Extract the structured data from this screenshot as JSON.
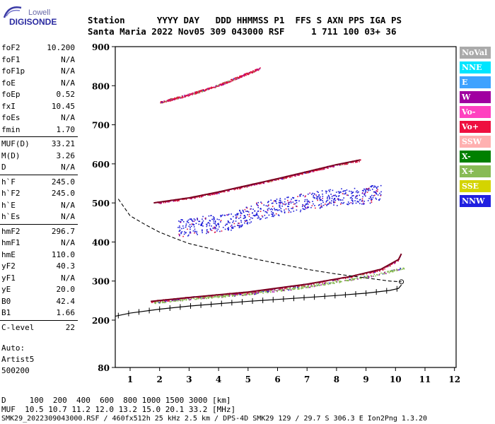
{
  "logo": {
    "top": "Lowell",
    "main": "DIGISONDE"
  },
  "header": {
    "row1": "Station      YYYY DAY   DDD HHMMSS P1  FFS S AXN PPS IGA PS",
    "row2": "Santa Maria 2022 Nov05 309 043000 RSF     1 711 100 03+ 36"
  },
  "params_group1": [
    {
      "label": "foF2",
      "value": "10.200"
    },
    {
      "label": "foF1",
      "value": "N/A"
    },
    {
      "label": "foF1p",
      "value": "N/A"
    },
    {
      "label": "foE",
      "value": "N/A"
    },
    {
      "label": "foEp",
      "value": "0.52"
    },
    {
      "label": "fxI",
      "value": "10.45"
    },
    {
      "label": "foEs",
      "value": "N/A"
    },
    {
      "label": "fmin",
      "value": "1.70"
    }
  ],
  "params_group2": [
    {
      "label": "MUF(D)",
      "value": "33.21"
    },
    {
      "label": "M(D)",
      "value": "3.26"
    },
    {
      "label": "D",
      "value": "N/A"
    }
  ],
  "params_group3": [
    {
      "label": "h`F",
      "value": "245.0"
    },
    {
      "label": "h`F2",
      "value": "245.0"
    },
    {
      "label": "h`E",
      "value": "N/A"
    },
    {
      "label": "h`Es",
      "value": "N/A"
    }
  ],
  "params_group4": [
    {
      "label": "hmF2",
      "value": "296.7"
    },
    {
      "label": "hmF1",
      "value": "N/A"
    },
    {
      "label": "hmE",
      "value": "110.0"
    },
    {
      "label": "yF2",
      "value": "40.3"
    },
    {
      "label": "yF1",
      "value": "N/A"
    },
    {
      "label": "yE",
      "value": "20.0"
    },
    {
      "label": "B0",
      "value": "42.4"
    },
    {
      "label": "B1",
      "value": "1.66"
    }
  ],
  "params_group5": [
    {
      "label": "C-level",
      "value": "22"
    }
  ],
  "auto": {
    "line1": "Auto:",
    "line2": "Artist5",
    "line3": "500200"
  },
  "legend": [
    {
      "label": "NoVal",
      "bg": "#aaaaaa",
      "fg": "#ffffff"
    },
    {
      "label": "NNE",
      "bg": "#00e5ff",
      "fg": "#ffffff"
    },
    {
      "label": "E",
      "bg": "#3ea2ff",
      "fg": "#ffffff"
    },
    {
      "label": "W",
      "bg": "#a000a0",
      "fg": "#ffffff"
    },
    {
      "label": "Vo-",
      "bg": "#ff40c0",
      "fg": "#ffffff"
    },
    {
      "label": "Vo+",
      "bg": "#ee1040",
      "fg": "#ffffff"
    },
    {
      "label": "SSW",
      "bg": "#ffb0b0",
      "fg": "#ffffff"
    },
    {
      "label": "X-",
      "bg": "#008000",
      "fg": "#ffffff"
    },
    {
      "label": "X+",
      "bg": "#88bb55",
      "fg": "#ffffff"
    },
    {
      "label": "SSE",
      "bg": "#d4d400",
      "fg": "#ffffff"
    },
    {
      "label": "NNW",
      "bg": "#2020e0",
      "fg": "#ffffff"
    }
  ],
  "bottom": {
    "row1": "D     100  200  400  600  800 1000 1500 3000 [km]",
    "row2": "MUF  10.5 10.7 11.2 12.0 13.2 15.0 20.1 33.2 [MHz]",
    "row3": "SMK29_2022309043000.RSF / 460fx512h 25 kHz 2.5 km / DPS-4D SMK29 129 / 29.7 S 306.3 E Ion2Png 1.3.20"
  },
  "chart_data": {
    "type": "scatter",
    "title": "",
    "xlabel": "",
    "ylabel": "",
    "xlim": [
      0.5,
      12
    ],
    "ylim": [
      80,
      900
    ],
    "xticks": [
      "1",
      "2",
      "3",
      "4",
      "5",
      "6",
      "7",
      "8",
      "9",
      "10",
      "11",
      "12"
    ],
    "yticks": [
      "80",
      "200",
      "300",
      "400",
      "500",
      "600",
      "700",
      "800",
      "900"
    ],
    "series": [
      {
        "name": "Vo+",
        "trace": [
          [
            1.7,
            248
          ],
          [
            3,
            258
          ],
          [
            5,
            272
          ],
          [
            7,
            292
          ],
          [
            8.5,
            312
          ],
          [
            9.5,
            330
          ],
          [
            10.1,
            355
          ],
          [
            10.2,
            370
          ]
        ]
      },
      {
        "name": "X+",
        "trace": [
          [
            1.8,
            246
          ],
          [
            3,
            255
          ],
          [
            5,
            268
          ],
          [
            7,
            286
          ],
          [
            8.5,
            305
          ],
          [
            9.5,
            320
          ],
          [
            10.3,
            335
          ]
        ]
      },
      {
        "name": "Vo+",
        "trace": [
          [
            1.8,
            500
          ],
          [
            3,
            513
          ],
          [
            4,
            528
          ],
          [
            5,
            545
          ],
          [
            6,
            562
          ],
          [
            7,
            580
          ],
          [
            8,
            598
          ],
          [
            8.8,
            610
          ]
        ]
      },
      {
        "name": "Vo+",
        "trace": [
          [
            2.0,
            758
          ],
          [
            3,
            778
          ],
          [
            4,
            802
          ],
          [
            5,
            833
          ],
          [
            5.4,
            845
          ]
        ]
      },
      {
        "name": "NNW",
        "trace": [
          [
            2.6,
            435
          ],
          [
            3.5,
            445
          ],
          [
            4.5,
            455
          ],
          [
            5,
            470
          ],
          [
            5.3,
            480
          ],
          [
            6,
            490
          ],
          [
            7,
            505
          ],
          [
            8,
            515
          ],
          [
            9,
            520
          ],
          [
            9.5,
            530
          ]
        ]
      }
    ],
    "profile": [
      [
        0.6,
        510
      ],
      [
        1,
        467
      ],
      [
        1.5,
        445
      ],
      [
        2,
        425
      ],
      [
        2.5,
        410
      ],
      [
        3,
        396
      ],
      [
        4,
        378
      ],
      [
        5,
        360
      ],
      [
        6,
        345
      ],
      [
        7,
        330
      ],
      [
        8,
        318
      ],
      [
        9,
        308
      ],
      [
        9.8,
        300
      ],
      [
        10.2,
        298
      ]
    ],
    "baseline": [
      [
        0.5,
        210
      ],
      [
        1,
        218
      ],
      [
        2,
        228
      ],
      [
        3,
        236
      ],
      [
        4,
        242
      ],
      [
        5,
        248
      ],
      [
        6,
        253
      ],
      [
        7,
        258
      ],
      [
        8,
        263
      ],
      [
        9,
        269
      ],
      [
        9.8,
        276
      ],
      [
        10.1,
        281
      ],
      [
        10.2,
        290
      ]
    ]
  }
}
